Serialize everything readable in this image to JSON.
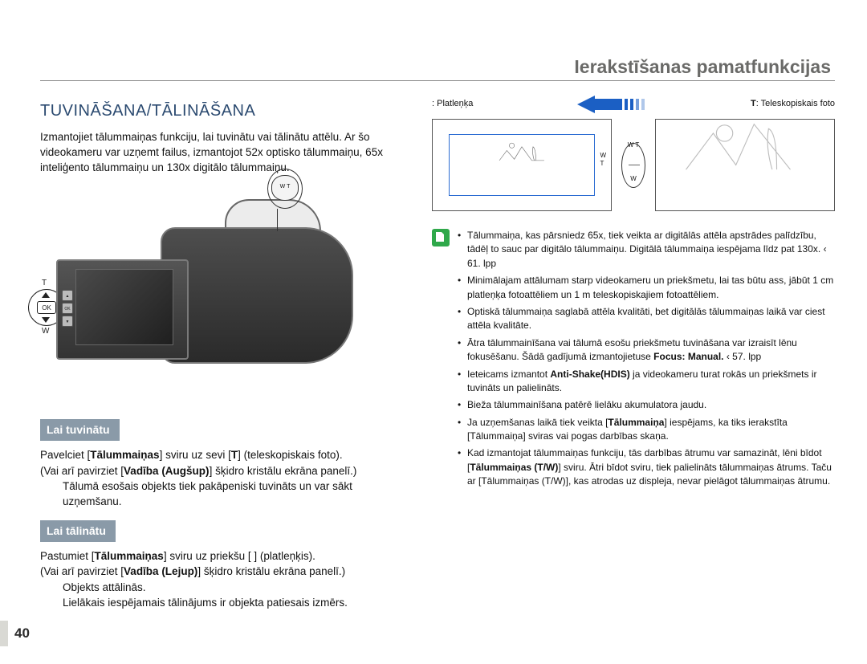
{
  "chapter_title": "Ierakstīšanas pamatfunkcijas",
  "section_title": "TUVINĀŠANA/TĀLINĀŠANA",
  "intro": "Izmantojiet tālummaiņas funkciju, lai tuvinātu vai tālinātu attēlu. Ar šo videokameru var uzņemt failus, izmantojot 52x optisko tālummaiņu, 65x inteliģento tālummaiņu un 130x digitālo tālummaiņu.",
  "camera": {
    "t_label": "T",
    "w_label": "W",
    "ok_label": "OK",
    "zoom_lever_wt": "W       T"
  },
  "sub1": {
    "heading": "Lai tuvinātu",
    "line1_a": "Pavelciet [",
    "line1_b": "Tālummaiņas",
    "line1_c": "] sviru uz sevi [",
    "line1_d": "T",
    "line1_e": "] (teleskopiskais foto).",
    "line2_a": "(Vai arī pavirziet [",
    "line2_b": "Vadība (Augšup)",
    "line2_c": "] šķidro kristālu ekrāna panelī.)",
    "line3": "Tālumā esošais objekts tiek pakāpeniski tuvināts un var sākt uzņemšanu."
  },
  "sub2": {
    "heading": "Lai tālinātu",
    "line1_a": "Pastumiet [",
    "line1_b": "Tālummaiņas",
    "line1_c": "] sviru uz priekšu [ ] (platleņķis).",
    "line2_a": "(Vai arī pavirziet [",
    "line2_b": "Vadība (Lejup)",
    "line2_c": "] šķidro kristālu ekrāna panelī.)",
    "line3": "Objekts attālinās.",
    "line4": "Lielākais iespējamais tālinājums ir objekta patiesais izmērs."
  },
  "right": {
    "w_label": " : Platleņķa",
    "t_label_prefix": "T",
    "t_label": ": Teleskopiskais foto",
    "wt_oval": {
      "w": "W",
      "t": "T"
    },
    "thumb_wt_w": "W",
    "thumb_wt_t": "T",
    "arrow": {
      "color_active": "#1b5fc4",
      "ticks": 5
    }
  },
  "notes": [
    "Tālummaiņa, kas pārsniedz 65x, tiek veikta ar digitālās attēla apstrādes palīdzību, tādēļ to sauc par digitālo tālummaiņu. Digitālā tālummaiņa iespējama līdz pat 130x.  ‹ 61. lpp",
    "Minimālajam attālumam starp videokameru un priekšmetu, lai tas būtu ass, jābūt 1 cm platleņķa fotoattēliem un 1 m teleskopiskajiem fotoattēliem.",
    "Optiskā tālummaiņa saglabā attēla kvalitāti, bet digitālās tālummaiņas laikā var ciest attēla kvalitāte.",
    "Ātra tālummainīšana vai tālumā esošu priekšmetu tuvināšana var izraisīt lēnu fokusēšanu. Šādā gadījumā izmantojietuse Focus: Manual.  ‹ 57. lpp",
    "Ieteicams izmantot Anti-Shake(HDIS) ja videokameru turat rokās un priekšmets ir tuvināts un palielināts.",
    "Bieža tālummainīšana patērē lielāku akumulatora jaudu.",
    "Ja uzņemšanas laikā tiek veikta [Tālummaiņa] iespējams, ka tiks ierakstīta [Tālummaiņa] sviras vai pogas darbības skaņa.",
    "Kad izmantojat tālummaiņas funkciju, tās darbības ātrumu var samazināt, lēni bīdot [Tālummaiņas (T/W)] sviru. Ātri bīdot sviru, tiek palielināts tālummaiņas ātrums. Taču ar [Tālummaiņas (T/W)], kas atrodas uz displeja, nevar pielāgot tālummaiņas ātrumu."
  ],
  "notes_bold": {
    "3": [
      "Focus:",
      "Manual."
    ],
    "4": [
      "Anti-Shake(HDIS)"
    ],
    "6": [
      "Tālummaiņa",
      "Tālummaiņa"
    ],
    "7": [
      "Tālummaiņas (T/W)",
      "Tālummaiņas (T/W)"
    ]
  },
  "page_number": "40",
  "colors": {
    "heading": "#2b4a70",
    "subheading_bg": "#8a9aa8",
    "note_icon": "#2fa84a",
    "arrow": "#1b5fc4",
    "inner_frame": "#2a6bd2"
  }
}
